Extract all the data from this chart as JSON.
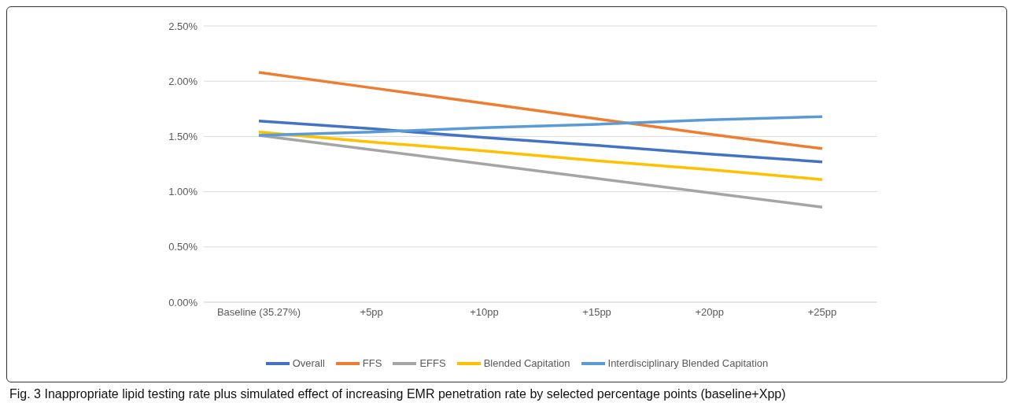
{
  "chart_data": {
    "type": "line",
    "title": "Fig. 3 Inappropriate lipid testing rate plus simulated effect of increasing EMR penetration rate by selected percentage points (baseline+Xpp)",
    "categories": [
      "Baseline (35.27%)",
      "+5pp",
      "+10pp",
      "+15pp",
      "+20pp",
      "+25pp"
    ],
    "series": [
      {
        "name": "Overall",
        "color": "#4472c4",
        "values": [
          1.64,
          1.57,
          1.49,
          1.42,
          1.34,
          1.27
        ]
      },
      {
        "name": "FFS",
        "color": "#ed7d31",
        "values": [
          2.08,
          1.94,
          1.8,
          1.66,
          1.52,
          1.39
        ]
      },
      {
        "name": "EFFS",
        "color": "#a5a5a5",
        "values": [
          1.51,
          1.38,
          1.25,
          1.12,
          0.99,
          0.86
        ]
      },
      {
        "name": "Blended Capitation",
        "color": "#ffc000",
        "values": [
          1.54,
          1.45,
          1.37,
          1.28,
          1.2,
          1.11
        ]
      },
      {
        "name": "Interdisciplinary Blended Capitation",
        "color": "#5b9bd5",
        "values": [
          1.51,
          1.54,
          1.58,
          1.61,
          1.65,
          1.68
        ]
      }
    ],
    "ylim": [
      0,
      2.5
    ],
    "yticks": [
      {
        "value": 0,
        "label": "0.00%"
      },
      {
        "value": 0.5,
        "label": "0.50%"
      },
      {
        "value": 1,
        "label": "1.00%"
      },
      {
        "value": 1.5,
        "label": "1.50%"
      },
      {
        "value": 2,
        "label": "2.00%"
      },
      {
        "value": 2.5,
        "label": "2.50%"
      }
    ],
    "grid": "y",
    "legend": "bottom",
    "marker": "none",
    "line_style": "solid"
  }
}
